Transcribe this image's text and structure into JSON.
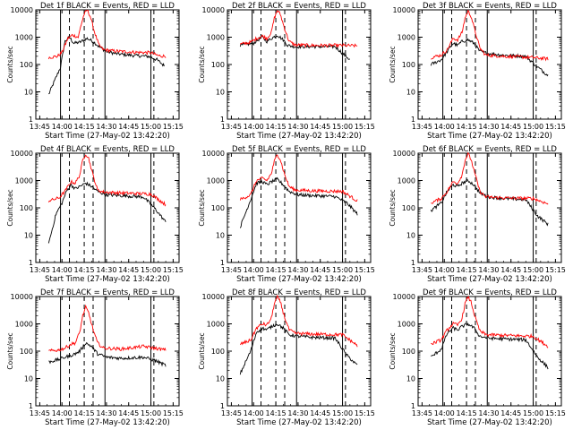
{
  "figure": {
    "background": "#ffffff"
  },
  "chart_data": [
    {
      "type": "line",
      "title": "Det 1f  BLACK = Events, RED = LLD",
      "xlabel": "Start Time (27-May-02 13:42:20)",
      "ylabel": "Counts/sec",
      "x_tick_labels": [
        "13:45",
        "14:00",
        "14:15",
        "14:30",
        "14:45",
        "15:00",
        "15:15"
      ],
      "y_tick_labels": [
        "1",
        "10",
        "100",
        "1000",
        "10000"
      ],
      "ylim": [
        1,
        10000
      ],
      "y_scale": "log",
      "series": [
        {
          "name": "Events",
          "color": "#000000",
          "x": [
            "13:51",
            "13:59",
            "14:02",
            "14:05",
            "14:08",
            "14:12",
            "14:17",
            "14:21",
            "14:25",
            "14:30",
            "14:36",
            "14:42",
            "14:50",
            "14:58",
            "15:04",
            "15:09"
          ],
          "y": [
            8,
            80,
            700,
            1000,
            600,
            650,
            900,
            700,
            450,
            300,
            250,
            230,
            210,
            200,
            150,
            90
          ]
        },
        {
          "name": "LLD",
          "color": "#ff0000",
          "x": [
            "13:51",
            "13:57",
            "14:00",
            "14:04",
            "14:07",
            "14:11",
            "14:13",
            "14:15",
            "14:17",
            "14:19",
            "14:22",
            "14:25",
            "14:28",
            "14:33",
            "14:40",
            "14:50",
            "15:00",
            "15:05",
            "15:10"
          ],
          "y": [
            180,
            200,
            280,
            900,
            1200,
            1000,
            3000,
            7000,
            9800,
            6000,
            1500,
            500,
            350,
            320,
            300,
            280,
            270,
            210,
            200
          ]
        }
      ]
    },
    {
      "type": "line",
      "title": "Det 2f  BLACK = Events, RED = LLD",
      "xlabel": "Start Time (27-May-02 13:42:20)",
      "ylabel": "Counts/sec",
      "x_tick_labels": [
        "13:45",
        "14:00",
        "14:15",
        "14:30",
        "14:45",
        "15:00",
        "15:15"
      ],
      "y_tick_labels": [
        "1",
        "10",
        "100",
        "1000",
        "10000"
      ],
      "ylim": [
        1,
        10000
      ],
      "y_scale": "log",
      "series": [
        {
          "name": "Events",
          "color": "#000000",
          "x": [
            "13:51",
            "14:00",
            "14:03",
            "14:06",
            "14:09",
            "14:12",
            "14:16",
            "14:20",
            "14:23",
            "14:28",
            "14:40",
            "14:55",
            "15:05"
          ],
          "y": [
            500,
            600,
            800,
            1000,
            700,
            900,
            1200,
            800,
            500,
            450,
            450,
            450,
            150
          ]
        },
        {
          "name": "LLD",
          "color": "#ff0000",
          "x": [
            "13:51",
            "13:58",
            "14:02",
            "14:06",
            "14:09",
            "14:12",
            "14:14",
            "14:16",
            "14:18",
            "14:21",
            "14:24",
            "14:28",
            "14:40",
            "15:00",
            "15:10"
          ],
          "y": [
            550,
            650,
            900,
            1100,
            900,
            1500,
            5000,
            9500,
            7000,
            2000,
            700,
            520,
            500,
            500,
            480
          ]
        }
      ]
    },
    {
      "type": "line",
      "title": "Det 3f  BLACK = Events, RED = LLD",
      "xlabel": "Start Time (27-May-02 13:42:20)",
      "ylabel": "Counts/sec",
      "x_tick_labels": [
        "13:45",
        "14:00",
        "14:15",
        "14:30",
        "14:45",
        "15:00",
        "15:15"
      ],
      "y_tick_labels": [
        "1",
        "10",
        "100",
        "1000",
        "10000"
      ],
      "ylim": [
        1,
        10000
      ],
      "y_scale": "log",
      "series": [
        {
          "name": "Events",
          "color": "#000000",
          "x": [
            "13:51",
            "13:58",
            "14:02",
            "14:06",
            "14:09",
            "14:12",
            "14:16",
            "14:20",
            "14:24",
            "14:30",
            "14:40",
            "14:55",
            "15:03",
            "15:10"
          ],
          "y": [
            100,
            150,
            300,
            600,
            500,
            700,
            800,
            600,
            300,
            250,
            220,
            200,
            80,
            40
          ]
        },
        {
          "name": "LLD",
          "color": "#ff0000",
          "x": [
            "13:51",
            "13:58",
            "14:02",
            "14:06",
            "14:09",
            "14:12",
            "14:14",
            "14:16",
            "14:18",
            "14:21",
            "14:24",
            "14:28",
            "14:40",
            "15:00",
            "15:10"
          ],
          "y": [
            180,
            220,
            350,
            900,
            800,
            1500,
            5000,
            9000,
            6000,
            1500,
            400,
            220,
            200,
            180,
            160
          ]
        }
      ]
    },
    {
      "type": "line",
      "title": "Det 4f  BLACK = Events, RED = LLD",
      "xlabel": "Start Time (27-May-02 13:42:20)",
      "ylabel": "Counts/sec",
      "x_tick_labels": [
        "13:45",
        "14:00",
        "14:15",
        "14:30",
        "14:45",
        "15:00",
        "15:15"
      ],
      "y_tick_labels": [
        "1",
        "10",
        "100",
        "1000",
        "10000"
      ],
      "ylim": [
        1,
        10000
      ],
      "y_scale": "log",
      "series": [
        {
          "name": "Events",
          "color": "#000000",
          "x": [
            "13:51",
            "13:56",
            "14:00",
            "14:03",
            "14:06",
            "14:09",
            "14:12",
            "14:16",
            "14:20",
            "14:24",
            "14:30",
            "14:40",
            "14:55",
            "15:03",
            "15:10"
          ],
          "y": [
            5,
            60,
            150,
            400,
            700,
            500,
            600,
            800,
            600,
            400,
            300,
            280,
            250,
            90,
            30
          ]
        },
        {
          "name": "LLD",
          "color": "#ff0000",
          "x": [
            "13:51",
            "13:58",
            "14:02",
            "14:06",
            "14:09",
            "14:12",
            "14:14",
            "14:16",
            "14:18",
            "14:21",
            "14:24",
            "14:28",
            "14:40",
            "15:00",
            "15:10"
          ],
          "y": [
            180,
            230,
            400,
            900,
            800,
            1600,
            5500,
            9500,
            6500,
            1500,
            450,
            380,
            350,
            320,
            130
          ]
        }
      ]
    },
    {
      "type": "line",
      "title": "Det 5f  BLACK = Events, RED = LLD",
      "xlabel": "Start Time (27-May-02 13:42:20)",
      "ylabel": "Counts/sec",
      "x_tick_labels": [
        "13:45",
        "14:00",
        "14:15",
        "14:30",
        "14:45",
        "15:00",
        "15:15"
      ],
      "y_tick_labels": [
        "1",
        "10",
        "100",
        "1000",
        "10000"
      ],
      "ylim": [
        1,
        10000
      ],
      "y_scale": "log",
      "series": [
        {
          "name": "Events",
          "color": "#000000",
          "x": [
            "13:51",
            "13:58",
            "14:02",
            "14:06",
            "14:09",
            "14:12",
            "14:16",
            "14:20",
            "14:24",
            "14:30",
            "14:40",
            "14:55",
            "15:03",
            "15:10"
          ],
          "y": [
            20,
            200,
            800,
            900,
            700,
            900,
            1100,
            700,
            400,
            300,
            280,
            260,
            150,
            60
          ]
        },
        {
          "name": "LLD",
          "color": "#ff0000",
          "x": [
            "13:51",
            "13:58",
            "14:02",
            "14:06",
            "14:09",
            "14:12",
            "14:14",
            "14:16",
            "14:18",
            "14:21",
            "14:24",
            "14:28",
            "14:40",
            "15:00",
            "15:10"
          ],
          "y": [
            200,
            300,
            1000,
            1200,
            1000,
            1800,
            5000,
            9000,
            6000,
            1600,
            600,
            450,
            420,
            400,
            180
          ]
        }
      ]
    },
    {
      "type": "line",
      "title": "Det 6f  BLACK = Events, RED = LLD",
      "xlabel": "Start Time (27-May-02 13:42:20)",
      "ylabel": "Counts/sec",
      "x_tick_labels": [
        "13:45",
        "14:00",
        "14:15",
        "14:30",
        "14:45",
        "15:00",
        "15:15"
      ],
      "y_tick_labels": [
        "1",
        "10",
        "100",
        "1000",
        "10000"
      ],
      "ylim": [
        1,
        10000
      ],
      "y_scale": "log",
      "series": [
        {
          "name": "Events",
          "color": "#000000",
          "x": [
            "13:51",
            "13:58",
            "14:02",
            "14:06",
            "14:09",
            "14:12",
            "14:16",
            "14:20",
            "14:24",
            "14:30",
            "14:40",
            "14:55",
            "15:03",
            "15:10"
          ],
          "y": [
            80,
            150,
            400,
            700,
            600,
            800,
            1000,
            700,
            350,
            250,
            220,
            200,
            50,
            25
          ]
        },
        {
          "name": "LLD",
          "color": "#ff0000",
          "x": [
            "13:51",
            "13:58",
            "14:02",
            "14:06",
            "14:09",
            "14:12",
            "14:14",
            "14:16",
            "14:18",
            "14:21",
            "14:24",
            "14:28",
            "14:40",
            "15:00",
            "15:10"
          ],
          "y": [
            150,
            220,
            400,
            900,
            800,
            1600,
            5500,
            9500,
            6000,
            1500,
            400,
            250,
            230,
            220,
            140
          ]
        }
      ]
    },
    {
      "type": "line",
      "title": "Det 7f  BLACK = Events, RED = LLD",
      "xlabel": "Start Time (27-May-02 13:42:20)",
      "ylabel": "Counts/sec",
      "x_tick_labels": [
        "13:45",
        "14:00",
        "14:15",
        "14:30",
        "14:45",
        "15:00",
        "15:15"
      ],
      "y_tick_labels": [
        "1",
        "10",
        "100",
        "1000",
        "10000"
      ],
      "ylim": [
        1,
        10000
      ],
      "y_scale": "log",
      "series": [
        {
          "name": "Events",
          "color": "#000000",
          "x": [
            "13:51",
            "13:58",
            "14:02",
            "14:06",
            "14:09",
            "14:12",
            "14:16",
            "14:20",
            "14:24",
            "14:30",
            "14:40",
            "14:55",
            "15:03",
            "15:10"
          ],
          "y": [
            40,
            50,
            60,
            70,
            80,
            100,
            200,
            150,
            80,
            60,
            55,
            60,
            45,
            30
          ]
        },
        {
          "name": "LLD",
          "color": "#ff0000",
          "x": [
            "13:51",
            "13:58",
            "14:02",
            "14:06",
            "14:09",
            "14:12",
            "14:14",
            "14:16",
            "14:18",
            "14:21",
            "14:24",
            "14:28",
            "14:40",
            "14:55",
            "15:10"
          ],
          "y": [
            100,
            110,
            130,
            180,
            200,
            500,
            2000,
            4000,
            2500,
            600,
            200,
            130,
            120,
            150,
            110
          ]
        }
      ]
    },
    {
      "type": "line",
      "title": "Det 8f  BLACK = Events, RED = LLD",
      "xlabel": "Start Time (27-May-02 13:42:20)",
      "ylabel": "Counts/sec",
      "x_tick_labels": [
        "13:45",
        "14:00",
        "14:15",
        "14:30",
        "14:45",
        "15:00",
        "15:15"
      ],
      "y_tick_labels": [
        "1",
        "10",
        "100",
        "1000",
        "10000"
      ],
      "ylim": [
        1,
        10000
      ],
      "y_scale": "log",
      "series": [
        {
          "name": "Events",
          "color": "#000000",
          "x": [
            "13:51",
            "13:58",
            "14:02",
            "14:06",
            "14:09",
            "14:12",
            "14:16",
            "14:20",
            "14:24",
            "14:30",
            "14:40",
            "14:55",
            "15:03",
            "15:10"
          ],
          "y": [
            15,
            100,
            500,
            700,
            600,
            800,
            1000,
            700,
            400,
            350,
            320,
            300,
            70,
            30
          ]
        },
        {
          "name": "LLD",
          "color": "#ff0000",
          "x": [
            "13:51",
            "13:58",
            "14:02",
            "14:06",
            "14:09",
            "14:12",
            "14:14",
            "14:16",
            "14:18",
            "14:21",
            "14:24",
            "14:28",
            "14:40",
            "15:00",
            "15:10"
          ],
          "y": [
            180,
            250,
            700,
            1000,
            900,
            1600,
            5500,
            9500,
            6500,
            1700,
            600,
            450,
            420,
            400,
            160
          ]
        }
      ]
    },
    {
      "type": "line",
      "title": "Det 9f  BLACK = Events, RED = LLD",
      "xlabel": "Start Time (27-May-02 13:42:20)",
      "ylabel": "Counts/sec",
      "x_tick_labels": [
        "13:45",
        "14:00",
        "14:15",
        "14:30",
        "14:45",
        "15:00",
        "15:15"
      ],
      "y_tick_labels": [
        "1",
        "10",
        "100",
        "1000",
        "10000"
      ],
      "ylim": [
        1,
        10000
      ],
      "y_scale": "log",
      "series": [
        {
          "name": "Events",
          "color": "#000000",
          "x": [
            "13:51",
            "13:58",
            "14:02",
            "14:06",
            "14:09",
            "14:12",
            "14:16",
            "14:20",
            "14:24",
            "14:30",
            "14:40",
            "14:55",
            "15:03",
            "15:10"
          ],
          "y": [
            60,
            120,
            450,
            700,
            600,
            800,
            1000,
            700,
            350,
            300,
            280,
            260,
            60,
            25
          ]
        },
        {
          "name": "LLD",
          "color": "#ff0000",
          "x": [
            "13:51",
            "13:58",
            "14:02",
            "14:06",
            "14:09",
            "14:12",
            "14:14",
            "14:16",
            "14:18",
            "14:21",
            "14:24",
            "14:28",
            "14:40",
            "15:00",
            "15:10"
          ],
          "y": [
            180,
            260,
            600,
            1000,
            900,
            1600,
            5500,
            9500,
            6500,
            1600,
            550,
            400,
            380,
            350,
            150
          ]
        }
      ]
    }
  ]
}
